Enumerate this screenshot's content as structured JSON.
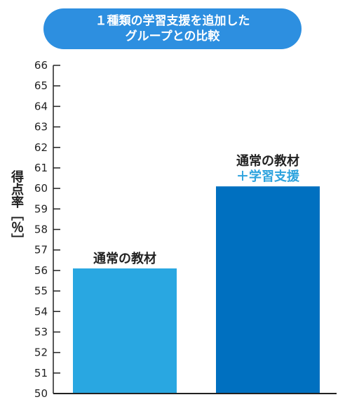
{
  "chart_data": {
    "type": "bar",
    "title": [
      "１種類の学習支援を追加した",
      "グループとの比較"
    ],
    "ylabel": "得点率［％］",
    "ylim": [
      50,
      66
    ],
    "yticks": [
      50,
      51,
      52,
      53,
      54,
      55,
      56,
      57,
      58,
      59,
      60,
      61,
      62,
      63,
      64,
      65,
      66
    ],
    "categories": [
      {
        "lines": [
          "通常の教材"
        ],
        "colors": [
          "#222222"
        ]
      },
      {
        "lines": [
          "通常の教材",
          "＋学習支援"
        ],
        "colors": [
          "#222222",
          "#2ea3de"
        ]
      }
    ],
    "values": [
      56.1,
      60.1
    ],
    "bar_colors": [
      "#29a7e1",
      "#0070c0"
    ]
  }
}
